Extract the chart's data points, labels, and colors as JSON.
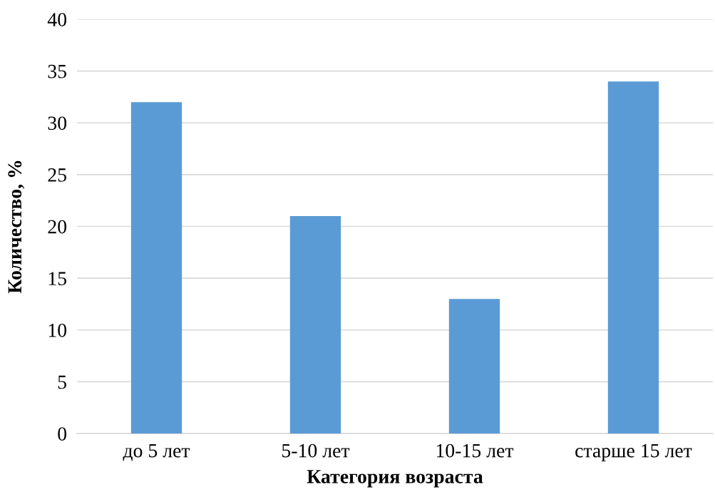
{
  "chart_data": {
    "type": "bar",
    "xlabel": "Категория возраста",
    "ylabel": "Количество, %",
    "categories": [
      "до 5 лет",
      "5-10 лет",
      "10-15 лет",
      "старше 15 лет"
    ],
    "values": [
      32,
      21,
      13,
      34
    ],
    "color": "#5b9bd5",
    "ylim": [
      0,
      40
    ],
    "yticks": [
      0,
      5,
      10,
      15,
      20,
      25,
      30,
      35,
      40
    ],
    "grid": "y"
  }
}
